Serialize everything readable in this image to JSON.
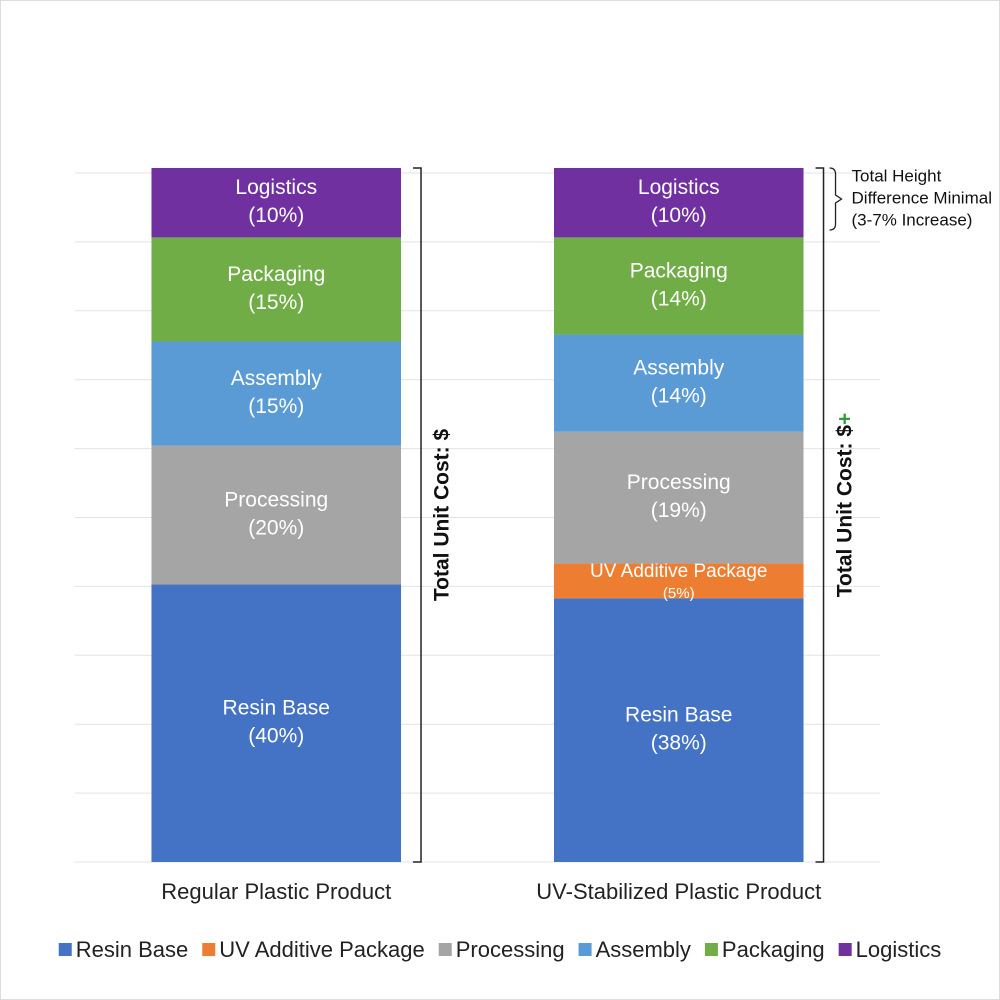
{
  "chart_data": {
    "type": "stacked_bar",
    "categories": [
      "Regular Plastic Product",
      "UV-Stabilized Plastic Product"
    ],
    "series": [
      {
        "name": "Resin Base",
        "color": "#4472c4",
        "values": [
          40,
          38
        ],
        "value_labels": [
          "(40%)",
          "(38%)"
        ]
      },
      {
        "name": "UV Additive Package",
        "color": "#ed7d31",
        "values": [
          null,
          5
        ],
        "value_labels": [
          null,
          "(5%)"
        ]
      },
      {
        "name": "Processing",
        "color": "#a5a5a5",
        "values": [
          20,
          19
        ],
        "value_labels": [
          "(20%)",
          "(19%)"
        ]
      },
      {
        "name": "Assembly",
        "color": "#5b9bd5",
        "values": [
          15,
          14
        ],
        "value_labels": [
          "(15%)",
          "(14%)"
        ]
      },
      {
        "name": "Packaging",
        "color": "#70ad47",
        "values": [
          15,
          14
        ],
        "value_labels": [
          "(15%)",
          "(14%)"
        ]
      },
      {
        "name": "Logistics",
        "color": "#7030a0",
        "values": [
          10,
          10
        ],
        "value_labels": [
          "(10%)",
          "(10%)"
        ]
      }
    ],
    "ylim": [
      0,
      100
    ],
    "grid": true,
    "legend": "bottom",
    "annotations": {
      "total_regular": "Total Unit Cost: $",
      "total_uv": "Total Unit Cost: $",
      "total_uv_suffix": "+",
      "height_note": [
        "Total Height",
        "Difference Minimal",
        "(3-7% Increase)"
      ]
    }
  }
}
